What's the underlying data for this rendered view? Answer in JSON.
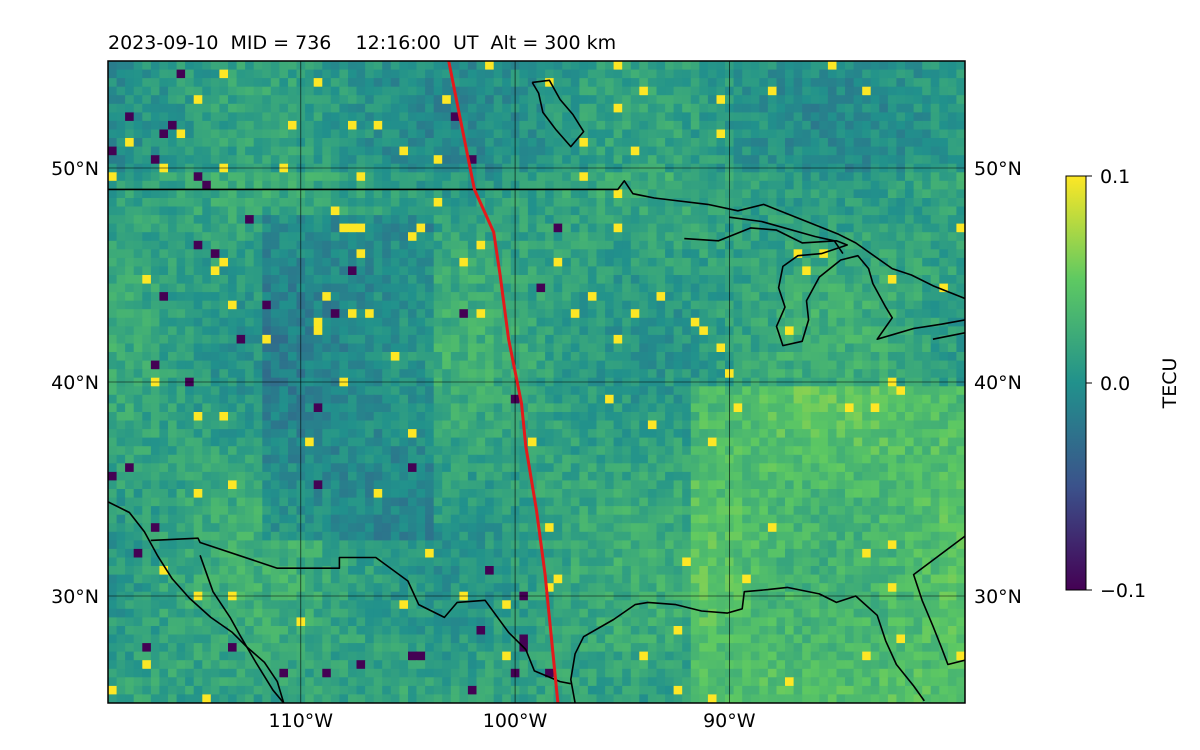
{
  "header": {
    "title": "2023-09-10  MID = 736    12:16:00  UT  Alt = 300 km"
  },
  "colorbar": {
    "label": "TECU",
    "ticks": [
      "0.1",
      "0.0",
      "−0.1"
    ],
    "colormap": "viridis",
    "colors": [
      "#440154",
      "#3b528b",
      "#21918c",
      "#5ec962",
      "#fde725"
    ]
  },
  "chart_data": {
    "type": "heatmap",
    "title": "2023-09-10  MID = 736    12:16:00  UT  Alt = 300 km",
    "subject": "total electron content perturbation map over North America",
    "xlabel": "",
    "ylabel": "",
    "xlim": [
      -119,
      -79
    ],
    "ylim": [
      25,
      55
    ],
    "x_ticks": [
      {
        "value": -110,
        "label": "110°W"
      },
      {
        "value": -100,
        "label": "100°W"
      },
      {
        "value": -90,
        "label": "90°W"
      }
    ],
    "y_ticks": [
      {
        "value": 30,
        "label": "30°N"
      },
      {
        "value": 40,
        "label": "40°N"
      },
      {
        "value": 50,
        "label": "50°N"
      }
    ],
    "grid": true,
    "colorbar_range": [
      -0.1,
      0.1
    ],
    "colorbar_label": "TECU",
    "overlay_line": {
      "color": "#e31a1c",
      "description": "terminator line",
      "points": [
        [
          -103.1,
          55
        ],
        [
          -102.1,
          50
        ],
        [
          -101.9,
          49
        ],
        [
          -101.0,
          47
        ],
        [
          -100.7,
          45
        ],
        [
          -100.3,
          42
        ],
        [
          -99.7,
          39
        ],
        [
          -99.5,
          37
        ],
        [
          -99.0,
          34
        ],
        [
          -98.6,
          31
        ],
        [
          -98.3,
          28
        ],
        [
          -98.0,
          25
        ]
      ]
    },
    "coastlines_color": "#000000",
    "coastlines": [
      [
        [
          -119,
          49
        ],
        [
          -95.2,
          49.0
        ],
        [
          -94.9,
          49.4
        ],
        [
          -94.5,
          48.8
        ],
        [
          -93.5,
          48.6
        ],
        [
          -91.0,
          48.3
        ],
        [
          -89.6,
          48.0
        ],
        [
          -88.4,
          48.3
        ],
        [
          -84.9,
          46.9
        ],
        [
          -84.1,
          46.5
        ],
        [
          -82.4,
          45.3
        ],
        [
          -81.5,
          45.0
        ],
        [
          -80.5,
          44.5
        ],
        [
          -79,
          43.9
        ]
      ],
      [
        [
          -119,
          34.4
        ],
        [
          -118.0,
          33.9
        ],
        [
          -117.3,
          33.0
        ],
        [
          -116.7,
          31.9
        ],
        [
          -116.0,
          30.8
        ],
        [
          -115.2,
          29.9
        ],
        [
          -114.2,
          29.0
        ],
        [
          -113.2,
          28.3
        ],
        [
          -112.5,
          27.6
        ],
        [
          -111.7,
          26.9
        ],
        [
          -111.1,
          26.0
        ],
        [
          -110.8,
          25
        ]
      ],
      [
        [
          -117.0,
          32.6
        ],
        [
          -114.8,
          32.7
        ],
        [
          -114.7,
          32.5
        ],
        [
          -111.1,
          31.3
        ],
        [
          -108.2,
          31.3
        ],
        [
          -108.2,
          31.8
        ],
        [
          -106.5,
          31.8
        ],
        [
          -105.0,
          30.7
        ],
        [
          -104.5,
          29.6
        ],
        [
          -103.3,
          29.0
        ],
        [
          -102.7,
          29.7
        ],
        [
          -101.4,
          29.8
        ],
        [
          -100.3,
          28.3
        ],
        [
          -99.5,
          27.5
        ],
        [
          -99.1,
          26.5
        ],
        [
          -97.9,
          26.0
        ],
        [
          -97.4,
          25.9
        ]
      ],
      [
        [
          -114.7,
          31.9
        ],
        [
          -114.1,
          30.2
        ],
        [
          -113.3,
          29.0
        ],
        [
          -112.8,
          28.1
        ],
        [
          -112.1,
          26.9
        ],
        [
          -111.3,
          25.6
        ],
        [
          -110.8,
          25
        ]
      ],
      [
        [
          -97.2,
          25
        ],
        [
          -97.4,
          26.1
        ],
        [
          -97.2,
          27.3
        ],
        [
          -96.8,
          28.1
        ],
        [
          -95.4,
          28.9
        ],
        [
          -94.4,
          29.6
        ],
        [
          -93.8,
          29.7
        ],
        [
          -92.5,
          29.6
        ],
        [
          -91.3,
          29.3
        ],
        [
          -90.1,
          29.2
        ],
        [
          -89.4,
          29.4
        ],
        [
          -89.3,
          30.2
        ],
        [
          -88.2,
          30.3
        ],
        [
          -87.3,
          30.4
        ],
        [
          -85.8,
          30.1
        ],
        [
          -85.0,
          29.7
        ],
        [
          -84.1,
          30.0
        ],
        [
          -83.1,
          29.1
        ],
        [
          -82.7,
          27.9
        ],
        [
          -82.2,
          26.8
        ],
        [
          -81.4,
          25.8
        ],
        [
          -80.9,
          25.1
        ]
      ],
      [
        [
          -79,
          27.0
        ],
        [
          -79.8,
          26.8
        ],
        [
          -80.1,
          27.6
        ],
        [
          -80.5,
          28.6
        ],
        [
          -81.0,
          29.8
        ],
        [
          -81.4,
          31.0
        ],
        [
          -79,
          32.8
        ]
      ],
      [
        [
          -99.2,
          54.0
        ],
        [
          -98.4,
          54.1
        ],
        [
          -97.9,
          53.2
        ],
        [
          -97.3,
          52.5
        ],
        [
          -96.8,
          51.7
        ],
        [
          -97.4,
          51.0
        ],
        [
          -98.1,
          51.8
        ],
        [
          -98.7,
          52.6
        ],
        [
          -98.9,
          53.5
        ],
        [
          -99.2,
          54.0
        ]
      ],
      [
        [
          -92.1,
          46.7
        ],
        [
          -90.5,
          46.6
        ],
        [
          -89.0,
          47.2
        ],
        [
          -87.8,
          47.1
        ],
        [
          -86.6,
          46.5
        ],
        [
          -85.0,
          46.6
        ],
        [
          -84.5,
          46.4
        ],
        [
          -85.7,
          46.0
        ],
        [
          -86.8,
          45.9
        ],
        [
          -87.5,
          45.4
        ],
        [
          -87.7,
          44.4
        ],
        [
          -87.4,
          43.5
        ],
        [
          -87.8,
          42.6
        ],
        [
          -87.5,
          41.7
        ],
        [
          -86.6,
          41.9
        ],
        [
          -86.3,
          42.9
        ],
        [
          -86.4,
          43.8
        ],
        [
          -85.8,
          44.9
        ],
        [
          -84.8,
          45.7
        ],
        [
          -84.0,
          45.9
        ],
        [
          -83.5,
          45.3
        ],
        [
          -83.3,
          44.6
        ],
        [
          -82.7,
          43.5
        ],
        [
          -82.4,
          43.0
        ],
        [
          -83.1,
          42.0
        ],
        [
          -81.4,
          42.5
        ],
        [
          -80.1,
          42.7
        ],
        [
          -79,
          42.9
        ]
      ],
      [
        [
          -90,
          47.7
        ],
        [
          -88.5,
          47.5
        ],
        [
          -86.0,
          46.8
        ],
        [
          -85.1,
          46.6
        ],
        [
          -84.7,
          46.0
        ]
      ],
      [
        [
          -80.5,
          42.0
        ],
        [
          -79,
          42.3
        ]
      ]
    ]
  }
}
